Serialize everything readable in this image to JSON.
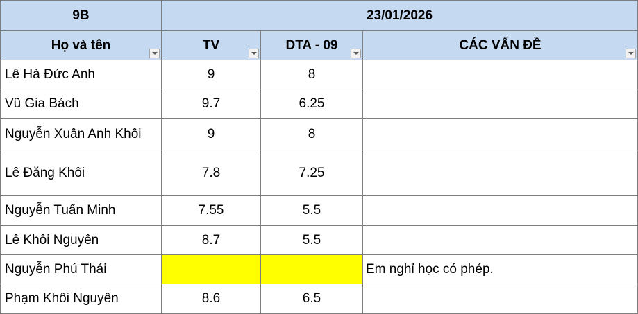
{
  "table": {
    "group": "9B",
    "date": "23/01/2026",
    "columns": [
      "Họ và tên",
      "TV",
      "DTA - 09",
      "CÁC VẤN ĐỀ"
    ],
    "rows": [
      [
        "Lê Hà Đức Anh",
        9,
        8,
        null
      ],
      [
        "Vũ Gia Bách",
        9.7,
        6.25,
        null
      ],
      [
        "Nguyễn Xuân Anh Khôi",
        9,
        8,
        null
      ],
      [
        "Lê Đăng Khôi",
        7.8,
        7.25,
        null
      ],
      [
        "Nguyễn Tuấn Minh",
        7.55,
        5.5,
        null
      ],
      [
        "Lê Khôi Nguyên",
        8.7,
        5.5,
        null
      ],
      [
        "Nguyễn Phú Thái",
        null,
        null,
        "Em nghỉ học có phép."
      ],
      [
        "Phạm Khôi Nguyên",
        8.6,
        6.5,
        null
      ]
    ]
  }
}
